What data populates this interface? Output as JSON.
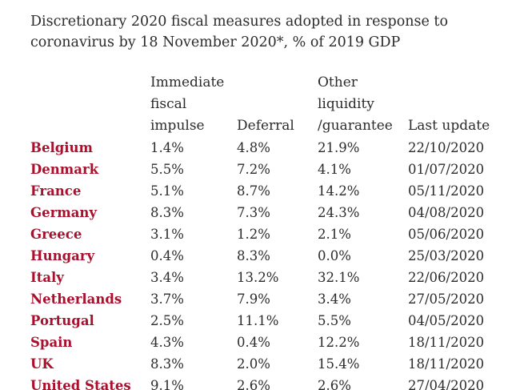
{
  "title": {
    "line1": "Discretionary 2020 fiscal measures adopted in response to",
    "line2": "coronavirus by 18 November 2020*, % of 2019 GDP"
  },
  "columns": {
    "immediate": [
      "Immediate",
      "fiscal",
      "impulse"
    ],
    "deferral": "Deferral",
    "other": [
      "Other",
      "liquidity",
      "/guarantee"
    ],
    "update": "Last update"
  },
  "rows": [
    {
      "country": "Belgium",
      "immediate": "1.4%",
      "deferral": "4.8%",
      "other": "21.9%",
      "update": "22/10/2020"
    },
    {
      "country": "Denmark",
      "immediate": "5.5%",
      "deferral": "7.2%",
      "other": "4.1%",
      "update": "01/07/2020"
    },
    {
      "country": "France",
      "immediate": "5.1%",
      "deferral": "8.7%",
      "other": "14.2%",
      "update": "05/11/2020"
    },
    {
      "country": "Germany",
      "immediate": "8.3%",
      "deferral": "7.3%",
      "other": "24.3%",
      "update": "04/08/2020"
    },
    {
      "country": "Greece",
      "immediate": "3.1%",
      "deferral": "1.2%",
      "other": "2.1%",
      "update": "05/06/2020"
    },
    {
      "country": "Hungary",
      "immediate": "0.4%",
      "deferral": "8.3%",
      "other": "0.0%",
      "update": "25/03/2020"
    },
    {
      "country": "Italy",
      "immediate": "3.4%",
      "deferral": "13.2%",
      "other": "32.1%",
      "update": "22/06/2020"
    },
    {
      "country": "Netherlands",
      "immediate": "3.7%",
      "deferral": "7.9%",
      "other": "3.4%",
      "update": "27/05/2020"
    },
    {
      "country": "Portugal",
      "immediate": "2.5%",
      "deferral": "11.1%",
      "other": "5.5%",
      "update": "04/05/2020"
    },
    {
      "country": "Spain",
      "immediate": "4.3%",
      "deferral": "0.4%",
      "other": "12.2%",
      "update": "18/11/2020"
    },
    {
      "country": "UK",
      "immediate": "8.3%",
      "deferral": "2.0%",
      "other": "15.4%",
      "update": "18/11/2020"
    },
    {
      "country": "United States",
      "immediate": "9.1%",
      "deferral": "2.6%",
      "other": "2.6%",
      "update": "27/04/2020"
    }
  ]
}
